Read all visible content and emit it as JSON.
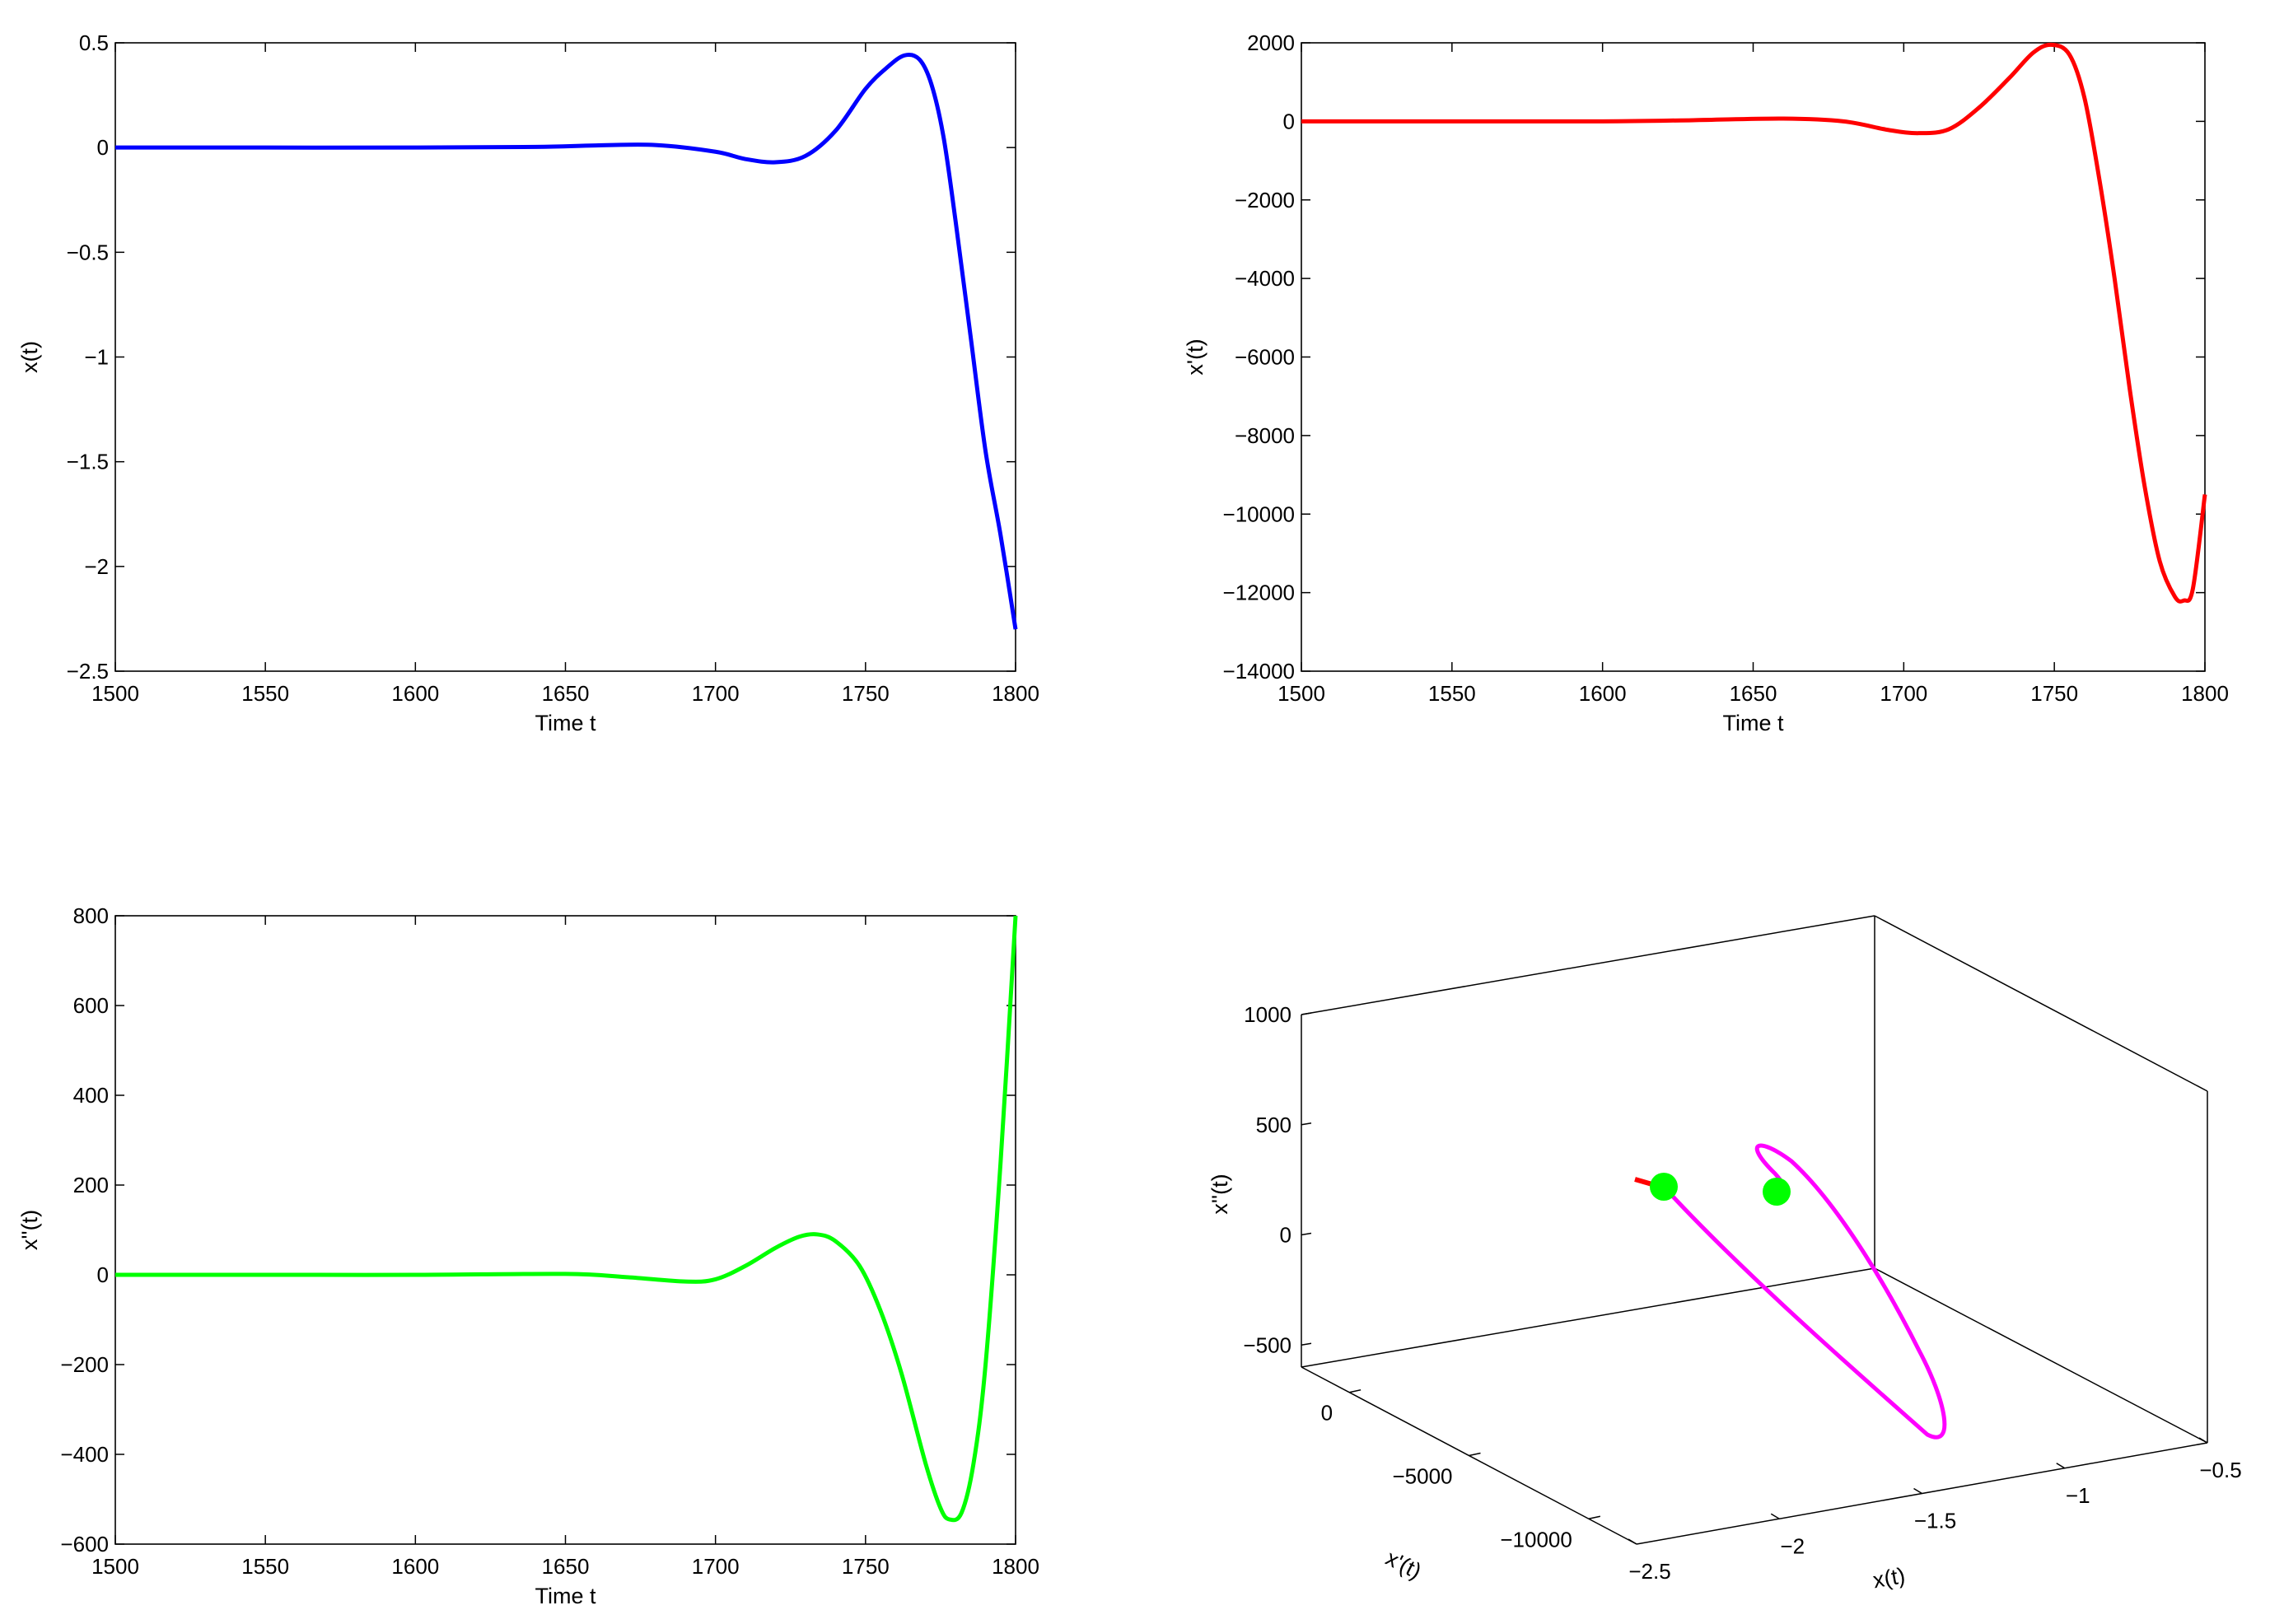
{
  "chart_data": [
    {
      "type": "line",
      "xlabel": "Time t",
      "ylabel": "x(t)",
      "xlim": [
        1500,
        1800
      ],
      "ylim": [
        -2.5,
        0.5
      ],
      "xticks": [
        1500,
        1550,
        1600,
        1650,
        1700,
        1750,
        1800
      ],
      "yticks": [
        -2.5,
        -2,
        -1.5,
        -1,
        -0.5,
        0,
        0.5
      ],
      "xtick_labels": [
        "1500",
        "1550",
        "1600",
        "1650",
        "1700",
        "1750",
        "1800"
      ],
      "ytick_labels": [
        "−2.5",
        "−2",
        "−1.5",
        "−1",
        "−0.5",
        "0",
        "0.5"
      ],
      "grid": false,
      "color": "#0000ff",
      "series": [
        {
          "x": [
            1500,
            1550,
            1600,
            1640,
            1660,
            1680,
            1700,
            1710,
            1720,
            1730,
            1740,
            1750,
            1757,
            1763,
            1768,
            1772,
            1776,
            1780,
            1785,
            1790,
            1795,
            1800
          ],
          "y": [
            0,
            0,
            0,
            0.003,
            0.01,
            0.012,
            -0.02,
            -0.055,
            -0.07,
            -0.04,
            0.08,
            0.28,
            0.38,
            0.44,
            0.42,
            0.3,
            0.05,
            -0.35,
            -0.9,
            -1.45,
            -1.85,
            -2.3
          ]
        }
      ]
    },
    {
      "type": "line",
      "xlabel": "Time t",
      "ylabel": "x'(t)",
      "xlim": [
        1500,
        1800
      ],
      "ylim": [
        -14000,
        2000
      ],
      "xticks": [
        1500,
        1550,
        1600,
        1650,
        1700,
        1750,
        1800
      ],
      "yticks": [
        -14000,
        -12000,
        -10000,
        -8000,
        -6000,
        -4000,
        -2000,
        0,
        2000
      ],
      "xtick_labels": [
        "1500",
        "1550",
        "1600",
        "1650",
        "1700",
        "1750",
        "1800"
      ],
      "ytick_labels": [
        "−14000",
        "−12000",
        "−10000",
        "−8000",
        "−6000",
        "−4000",
        "−2000",
        "0",
        "2000"
      ],
      "grid": false,
      "color": "#ff0000",
      "series": [
        {
          "x": [
            1500,
            1550,
            1600,
            1630,
            1660,
            1680,
            1695,
            1705,
            1715,
            1725,
            1735,
            1743,
            1749,
            1755,
            1760,
            1765,
            1770,
            1775,
            1780,
            1785,
            1790,
            1793,
            1796,
            1800
          ],
          "y": [
            0,
            0,
            0,
            30,
            70,
            0,
            -220,
            -300,
            -200,
            350,
            1100,
            1750,
            1950,
            1700,
            600,
            -1500,
            -4000,
            -6800,
            -9300,
            -11200,
            -12100,
            -12200,
            -11900,
            -9500
          ]
        }
      ]
    },
    {
      "type": "line",
      "xlabel": "Time t",
      "ylabel": "x''(t)",
      "xlim": [
        1500,
        1800
      ],
      "ylim": [
        -600,
        800
      ],
      "xticks": [
        1500,
        1550,
        1600,
        1650,
        1700,
        1750,
        1800
      ],
      "yticks": [
        -600,
        -400,
        -200,
        0,
        200,
        400,
        600,
        800
      ],
      "xtick_labels": [
        "1500",
        "1550",
        "1600",
        "1650",
        "1700",
        "1750",
        "1800"
      ],
      "ytick_labels": [
        "−600",
        "−400",
        "−200",
        "0",
        "200",
        "400",
        "600",
        "800"
      ],
      "grid": false,
      "color": "#00ff00",
      "series": [
        {
          "x": [
            1500,
            1550,
            1600,
            1650,
            1670,
            1690,
            1700,
            1710,
            1720,
            1728,
            1734,
            1740,
            1748,
            1755,
            1762,
            1770,
            1775,
            1778,
            1782,
            1786,
            1790,
            1795,
            1800
          ],
          "y": [
            0,
            0,
            0,
            2,
            -5,
            -15,
            -10,
            20,
            60,
            85,
            90,
            75,
            20,
            -80,
            -220,
            -420,
            -520,
            -545,
            -530,
            -420,
            -200,
            250,
            800
          ]
        }
      ]
    },
    {
      "type": "line",
      "projection": "3d",
      "xlabel": "x(t)",
      "ylabel": "x'(t)",
      "zlabel": "x''(t)",
      "xlim": [
        -2.5,
        -0.5
      ],
      "ylim": [
        -12000,
        2000
      ],
      "zlim": [
        -600,
        1000
      ],
      "xticks": [
        -2.5,
        -2,
        -1.5,
        -1,
        -0.5
      ],
      "yticks": [
        -10000,
        -5000,
        0
      ],
      "zticks": [
        -500,
        0,
        500,
        1000
      ],
      "xtick_labels": [
        "−2.5",
        "−2",
        "−1.5",
        "−1",
        "−0.5"
      ],
      "ytick_labels": [
        "−10000",
        "−5000",
        "0"
      ],
      "ztick_labels": [
        "−500",
        "0",
        "500",
        "1000"
      ],
      "grid": false,
      "color": "#ff00ff"
    }
  ]
}
